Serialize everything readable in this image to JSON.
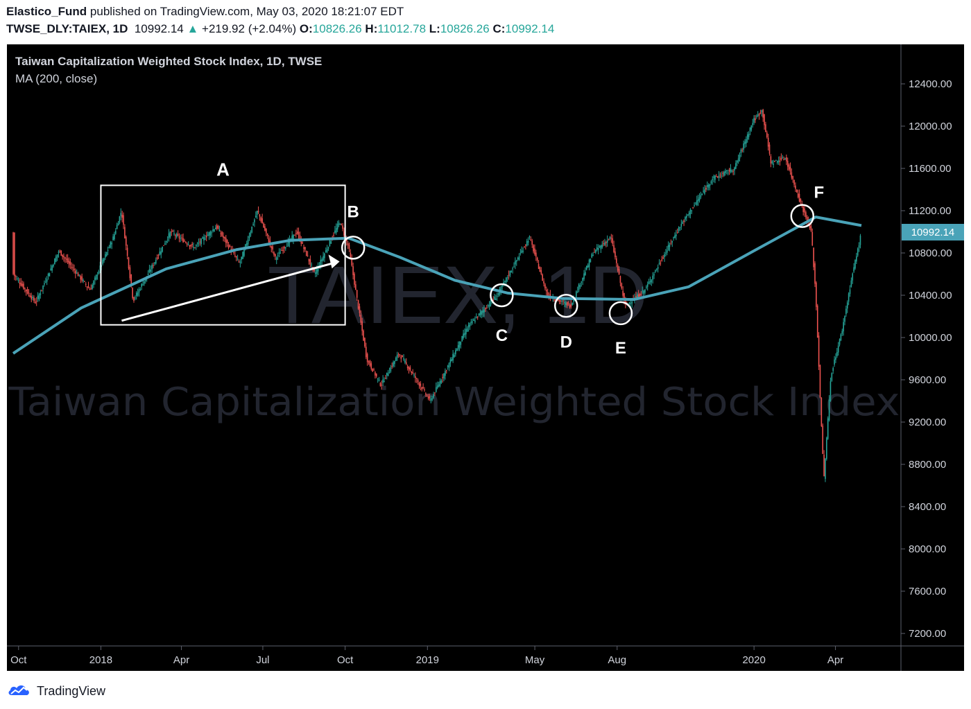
{
  "header": {
    "publisher": "Elastico_Fund",
    "published_text": "published on TradingView.com, May 03, 2020 18:21:07 EDT",
    "symbol": "TWSE_DLY:TAIEX, 1D",
    "last": "10992.14",
    "change": "+219.92 (+2.04%)",
    "o_label": "O:",
    "o_value": "10826.26",
    "h_label": "H:",
    "h_value": "11012.78",
    "l_label": "L:",
    "l_value": "10826.26",
    "c_label": "C:",
    "c_value": "10992.14"
  },
  "legend": {
    "title": "Taiwan Capitalization Weighted Stock Index, 1D, TWSE",
    "indicator": "MA (200, close)"
  },
  "watermark": {
    "symbol": "TAIEX, 1D",
    "name": "Taiwan Capitalization Weighted Stock Index"
  },
  "price_badge": "10992.14",
  "footer": {
    "brand": "TradingView",
    "logo_icon": "tradingview-logo-icon"
  },
  "colors": {
    "background": "#000000",
    "up": "#26a69a",
    "down": "#ef5350",
    "ma": "#4aa3b8",
    "annotation": "#ffffff"
  },
  "chart_data": {
    "type": "candlestick",
    "y_ticks": [
      "12400.00",
      "12000.00",
      "11600.00",
      "11200.00",
      "10800.00",
      "10400.00",
      "10000.00",
      "9600.00",
      "9200.00",
      "8800.00",
      "8400.00",
      "8000.00",
      "7600.00",
      "7200.00"
    ],
    "x_ticks": [
      "Oct",
      "2018",
      "Apr",
      "Jul",
      "Oct",
      "2019",
      "May",
      "Aug",
      "2020",
      "Apr"
    ],
    "ylim": [
      7000,
      12800
    ],
    "close_series": [
      {
        "date": "2017-09-25",
        "value": 10600
      },
      {
        "date": "2017-10-20",
        "value": 10330
      },
      {
        "date": "2017-11-15",
        "value": 10820
      },
      {
        "date": "2017-12-01",
        "value": 10650
      },
      {
        "date": "2017-12-20",
        "value": 10450
      },
      {
        "date": "2018-01-15",
        "value": 10950
      },
      {
        "date": "2018-01-24",
        "value": 11200
      },
      {
        "date": "2018-02-06",
        "value": 10350
      },
      {
        "date": "2018-03-01",
        "value": 10700
      },
      {
        "date": "2018-03-20",
        "value": 11000
      },
      {
        "date": "2018-04-15",
        "value": 10850
      },
      {
        "date": "2018-05-10",
        "value": 11050
      },
      {
        "date": "2018-06-05",
        "value": 10700
      },
      {
        "date": "2018-06-25",
        "value": 11200
      },
      {
        "date": "2018-07-15",
        "value": 10750
      },
      {
        "date": "2018-08-08",
        "value": 11000
      },
      {
        "date": "2018-08-28",
        "value": 10600
      },
      {
        "date": "2018-09-25",
        "value": 11100
      },
      {
        "date": "2018-10-05",
        "value": 10850
      },
      {
        "date": "2018-10-25",
        "value": 9800
      },
      {
        "date": "2018-11-10",
        "value": 9550
      },
      {
        "date": "2018-11-30",
        "value": 9850
      },
      {
        "date": "2018-12-20",
        "value": 9600
      },
      {
        "date": "2019-01-04",
        "value": 9400
      },
      {
        "date": "2019-02-15",
        "value": 10100
      },
      {
        "date": "2019-03-20",
        "value": 10400
      },
      {
        "date": "2019-04-25",
        "value": 10950
      },
      {
        "date": "2019-05-15",
        "value": 10400
      },
      {
        "date": "2019-06-10",
        "value": 10300
      },
      {
        "date": "2019-07-05",
        "value": 10800
      },
      {
        "date": "2019-07-25",
        "value": 10950
      },
      {
        "date": "2019-08-10",
        "value": 10300
      },
      {
        "date": "2019-09-01",
        "value": 10450
      },
      {
        "date": "2019-10-10",
        "value": 11050
      },
      {
        "date": "2019-11-15",
        "value": 11500
      },
      {
        "date": "2019-12-10",
        "value": 11600
      },
      {
        "date": "2019-12-31",
        "value": 12050
      },
      {
        "date": "2020-01-10",
        "value": 12150
      },
      {
        "date": "2020-01-20",
        "value": 11650
      },
      {
        "date": "2020-02-05",
        "value": 11700
      },
      {
        "date": "2020-02-21",
        "value": 11300
      },
      {
        "date": "2020-03-05",
        "value": 11000
      },
      {
        "date": "2020-03-10",
        "value": 10400
      },
      {
        "date": "2020-03-19",
        "value": 8650
      },
      {
        "date": "2020-03-27",
        "value": 9650
      },
      {
        "date": "2020-04-08",
        "value": 10050
      },
      {
        "date": "2020-04-20",
        "value": 10600
      },
      {
        "date": "2020-04-30",
        "value": 10992.14
      }
    ],
    "ma_series": [
      {
        "date": "2017-09-25",
        "value": 9850
      },
      {
        "date": "2017-12-10",
        "value": 10280
      },
      {
        "date": "2018-03-15",
        "value": 10650
      },
      {
        "date": "2018-06-01",
        "value": 10830
      },
      {
        "date": "2018-08-01",
        "value": 10920
      },
      {
        "date": "2018-10-05",
        "value": 10940
      },
      {
        "date": "2018-12-01",
        "value": 10760
      },
      {
        "date": "2019-02-01",
        "value": 10540
      },
      {
        "date": "2019-04-01",
        "value": 10420
      },
      {
        "date": "2019-06-01",
        "value": 10370
      },
      {
        "date": "2019-08-20",
        "value": 10360
      },
      {
        "date": "2019-10-20",
        "value": 10480
      },
      {
        "date": "2020-01-01",
        "value": 10820
      },
      {
        "date": "2020-03-10",
        "value": 11140
      },
      {
        "date": "2020-04-30",
        "value": 11060
      }
    ],
    "annotations": [
      {
        "label": "A",
        "type": "box",
        "from": "2018-01-01",
        "to": "2018-10-01",
        "low": 10120,
        "high": 11440
      },
      {
        "label": "B",
        "type": "circle",
        "date": "2018-10-10",
        "value": 10850
      },
      {
        "label": "C",
        "type": "circle",
        "date": "2019-03-25",
        "value": 10400
      },
      {
        "label": "D",
        "type": "circle",
        "date": "2019-06-05",
        "value": 10300
      },
      {
        "label": "E",
        "type": "circle",
        "date": "2019-08-05",
        "value": 10230
      },
      {
        "label": "F",
        "type": "circle",
        "date": "2020-02-24",
        "value": 11150
      }
    ]
  }
}
